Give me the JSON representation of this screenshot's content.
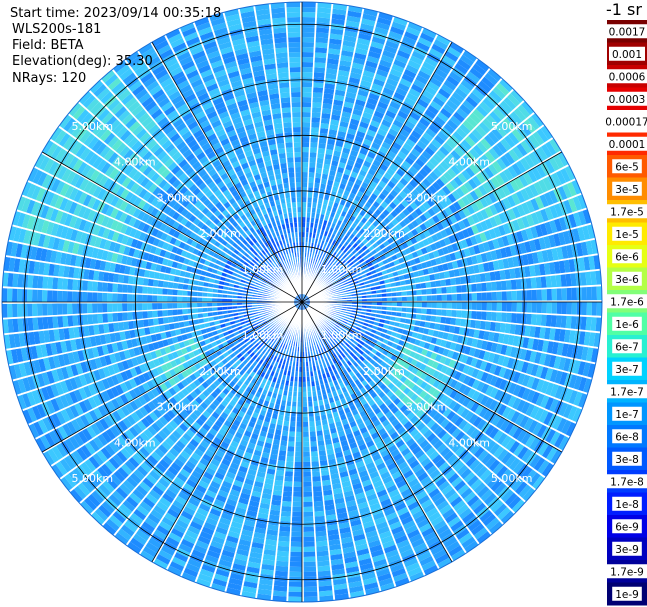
{
  "header": {
    "start_time": "Start time: 2023/09/14 00:35:18",
    "instrument": "WLS200s-181",
    "field": "Field: BETA",
    "elevation": "Elevation(deg): 35.30",
    "nrays": "NRays: 120"
  },
  "colorbar": {
    "title": "-1 sr",
    "labels": [
      "0.0017",
      "0.001",
      "0.0006",
      "0.0003",
      "0.00017",
      "0.0001",
      "6e-5",
      "3e-5",
      "1.7e-5",
      "1e-5",
      "6e-6",
      "3e-6",
      "1.7e-6",
      "1e-6",
      "6e-7",
      "3e-7",
      "1.7e-7",
      "1e-7",
      "6e-8",
      "3e-8",
      "1.7e-8",
      "1e-8",
      "6e-9",
      "3e-9",
      "1.7e-9",
      "1e-9"
    ],
    "colors": [
      "#7a0000",
      "#a00000",
      "#c80000",
      "#e60000",
      "#ffffff",
      "#ff2a00",
      "#ff5a00",
      "#ff8c00",
      "#ffbe00",
      "#ffea00",
      "#e6ff14",
      "#b4ff46",
      "#82ff78",
      "#50ffa5",
      "#28f0d2",
      "#00d2ff",
      "#00b4ff",
      "#0096ff",
      "#0078ff",
      "#005aff",
      "#003cff",
      "#001eff",
      "#0000e6",
      "#0000c0",
      "#00009a",
      "#000073"
    ]
  },
  "chart_data": {
    "type": "heatmap",
    "projection": "polar (PPI)",
    "field": "BETA",
    "nrays": 120,
    "max_range_km": 5.4,
    "range_rings_km": [
      1,
      2,
      3,
      4,
      5
    ],
    "ring_labels": [
      "1.00km",
      "2.00km",
      "3.00km",
      "4.00km",
      "5.00km"
    ],
    "azimuth_lines_deg": [
      0,
      30,
      60,
      90,
      120,
      150
    ],
    "typical_value_range": [
      "1.7e-8",
      "1.7e-7"
    ],
    "colormap_note": "blue-cyan dominant, green patches near outer NE/NW and inner rings"
  }
}
